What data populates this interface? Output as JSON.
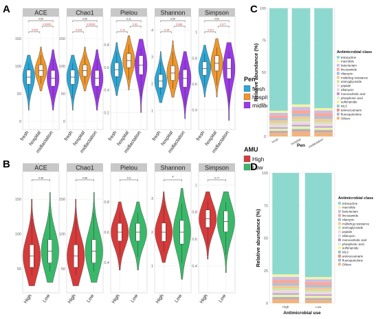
{
  "colors": {
    "fresh": "#2ba7d6",
    "hospital": "#f0962a",
    "midlactation": "#9b38e8",
    "High": "#d63a3a",
    "Low": "#39b86a",
    "strip": "#c8c8c8",
    "grid": "#ececec",
    "sigtext": "#e03030"
  },
  "panel_letters": [
    "A",
    "B",
    "C",
    "D"
  ],
  "chart_data": [
    {
      "type": "violin",
      "panel": "A",
      "metrics": [
        "ACE",
        "Chao1",
        "Pielou",
        "Shannon",
        "Simpson"
      ],
      "groups": [
        "fresh",
        "hospital",
        "midlactation"
      ],
      "ticks": [
        [
          0,
          50,
          100,
          150
        ],
        [
          0,
          50,
          100,
          150
        ],
        [
          0.2,
          0.4,
          0.6,
          0.8
        ],
        [
          1,
          2,
          3,
          4
        ],
        [
          0.4,
          0.6,
          0.8,
          1.0
        ]
      ],
      "ylim": [
        [
          -15,
          190
        ],
        [
          -15,
          190
        ],
        [
          0.05,
          1.05
        ],
        [
          0.3,
          4.5
        ],
        [
          0.25,
          1.12
        ]
      ],
      "stats": [
        [
          [
            80,
            20,
            120
          ],
          [
            92,
            55,
            135
          ],
          [
            78,
            20,
            130
          ]
        ],
        [
          [
            80,
            20,
            120
          ],
          [
            92,
            55,
            135
          ],
          [
            78,
            20,
            130
          ]
        ],
        [
          [
            0.58,
            0.35,
            0.82
          ],
          [
            0.66,
            0.4,
            0.88
          ],
          [
            0.62,
            0.2,
            0.85
          ]
        ],
        [
          [
            2.1,
            1.3,
            3.2
          ],
          [
            2.4,
            1.5,
            3.6
          ],
          [
            2.2,
            0.7,
            3.2
          ]
        ],
        [
          [
            0.72,
            0.5,
            0.9
          ],
          [
            0.76,
            0.5,
            0.95
          ],
          [
            0.72,
            0.32,
            0.92
          ]
        ]
      ],
      "pvalues": [
        [
          "0.00",
          "0.026",
          "0.00001"
        ],
        [
          "0.00",
          "0.028",
          "0.00001"
        ],
        [
          "0.11",
          "0.12",
          "0.83"
        ],
        [
          "0.00",
          "0.18",
          "0.088"
        ],
        [
          "0.00",
          "0.021",
          "0.077"
        ]
      ],
      "legend": {
        "title": "Pen",
        "entries": [
          "fresh",
          "hospital",
          "midlactation"
        ]
      }
    },
    {
      "type": "violin",
      "panel": "B",
      "metrics": [
        "ACE",
        "Chao1",
        "Pielou",
        "Shannon",
        "Simpson"
      ],
      "groups": [
        "High",
        "Low"
      ],
      "ticks": [
        [
          50,
          100,
          150
        ],
        [
          50,
          100,
          150
        ],
        [
          0.4,
          0.6,
          0.8
        ],
        [
          1,
          2,
          3
        ],
        [
          0.4,
          0.6,
          0.8,
          1.0
        ]
      ],
      "ylim": [
        [
          15,
          190
        ],
        [
          15,
          190
        ],
        [
          0.2,
          1.0
        ],
        [
          0.2,
          3.8
        ],
        [
          0.2,
          1.1
        ]
      ],
      "stats": [
        [
          [
            68,
            25,
            150
          ],
          [
            75,
            30,
            160
          ]
        ],
        [
          [
            68,
            25,
            150
          ],
          [
            75,
            30,
            160
          ]
        ],
        [
          [
            0.6,
            0.35,
            0.8
          ],
          [
            0.6,
            0.35,
            0.8
          ]
        ],
        [
          [
            2.0,
            1.1,
            3.2
          ],
          [
            2.0,
            0.6,
            3.3
          ]
        ],
        [
          [
            0.75,
            0.45,
            0.95
          ],
          [
            0.73,
            0.35,
            0.95
          ]
        ]
      ],
      "pvalues": [
        "0.46",
        "0.66",
        "0.9",
        "*",
        "0.77"
      ],
      "legend": {
        "title": "AMU",
        "entries": [
          "High",
          "Low"
        ]
      }
    },
    {
      "type": "bar",
      "stacked": true,
      "panel": "C",
      "categories": [
        "fresh",
        "hospital",
        "midlactation"
      ],
      "xlabel": "Pen",
      "ylabel": "Relative abundance (%)",
      "yticks": [
        0,
        25,
        50,
        75,
        100
      ],
      "ylim": [
        0,
        100
      ],
      "legend_title": "Antimicrobial class",
      "classes": [
        "tetracycline",
        "macrolide",
        "beta-lactam",
        "lincosamide",
        "rifamycin",
        "multidrug resistance",
        "aminoglycoside",
        "peptide",
        "elfamycin",
        "monocarbolic acid",
        "phosphonic acid",
        "sulfonamide",
        "MLS",
        "aminocoumarin",
        "fluoroquinolone",
        "Others"
      ],
      "class_colors": [
        "#8ed9cf",
        "#f4f3a6",
        "#c8bde6",
        "#f8a89b",
        "#9ec2e0",
        "#f6c59a",
        "#cbe6a0",
        "#f7d3e5",
        "#dcdcdc",
        "#c397c6",
        "#d8f0cc",
        "#fbef91",
        "#97c9c4",
        "#ef8b87",
        "#a4b8d8",
        "#f3b47b"
      ],
      "series_values": [
        [
          80,
          1.6,
          1.9,
          2.5,
          1.5,
          1.8,
          1.5,
          1.2,
          1.0,
          0.9,
          0.8,
          0.8,
          0.7,
          0.6,
          0.6,
          2.6
        ],
        [
          75,
          2.0,
          2.5,
          3.0,
          1.8,
          2.2,
          1.8,
          1.5,
          1.2,
          1.1,
          1.0,
          1.0,
          0.9,
          0.8,
          0.7,
          3.5
        ],
        [
          78,
          1.8,
          2.1,
          2.7,
          1.6,
          2.0,
          1.6,
          1.3,
          1.1,
          1.0,
          0.9,
          0.9,
          0.8,
          0.7,
          0.6,
          3.0
        ]
      ]
    },
    {
      "type": "bar",
      "stacked": true,
      "panel": "D",
      "categories": [
        "High",
        "Low"
      ],
      "xlabel": "Antimicrobial use",
      "ylabel": "Relative abundance (%)",
      "yticks": [
        0,
        25,
        50,
        75,
        100
      ],
      "ylim": [
        0,
        100
      ],
      "legend_title": "Antimicrobial class",
      "classes": [
        "tetracycline",
        "macrolide",
        "beta-lactam",
        "lincosamide",
        "rifamycin",
        "multidrug resistance",
        "aminoglycoside",
        "peptide",
        "elfamycin",
        "monocarbolic acid",
        "phosphonic acid",
        "sulfonamide",
        "MLS",
        "aminocoumarin",
        "fluoroquinolone",
        "Others"
      ],
      "class_colors": [
        "#8ed9cf",
        "#f4f3a6",
        "#c8bde6",
        "#f8a89b",
        "#9ec2e0",
        "#f6c59a",
        "#cbe6a0",
        "#f7d3e5",
        "#dcdcdc",
        "#c397c6",
        "#d8f0cc",
        "#fbef91",
        "#97c9c4",
        "#ef8b87",
        "#a4b8d8",
        "#f3b47b"
      ],
      "series_values": [
        [
          78,
          1.9,
          2.2,
          2.8,
          1.6,
          2.0,
          1.6,
          1.3,
          1.1,
          1.0,
          0.9,
          0.9,
          0.8,
          0.7,
          0.6,
          2.7
        ],
        [
          80,
          1.7,
          2.0,
          2.6,
          1.5,
          1.9,
          1.5,
          1.2,
          1.0,
          0.9,
          0.8,
          0.8,
          0.7,
          0.6,
          0.6,
          2.2
        ]
      ]
    }
  ]
}
